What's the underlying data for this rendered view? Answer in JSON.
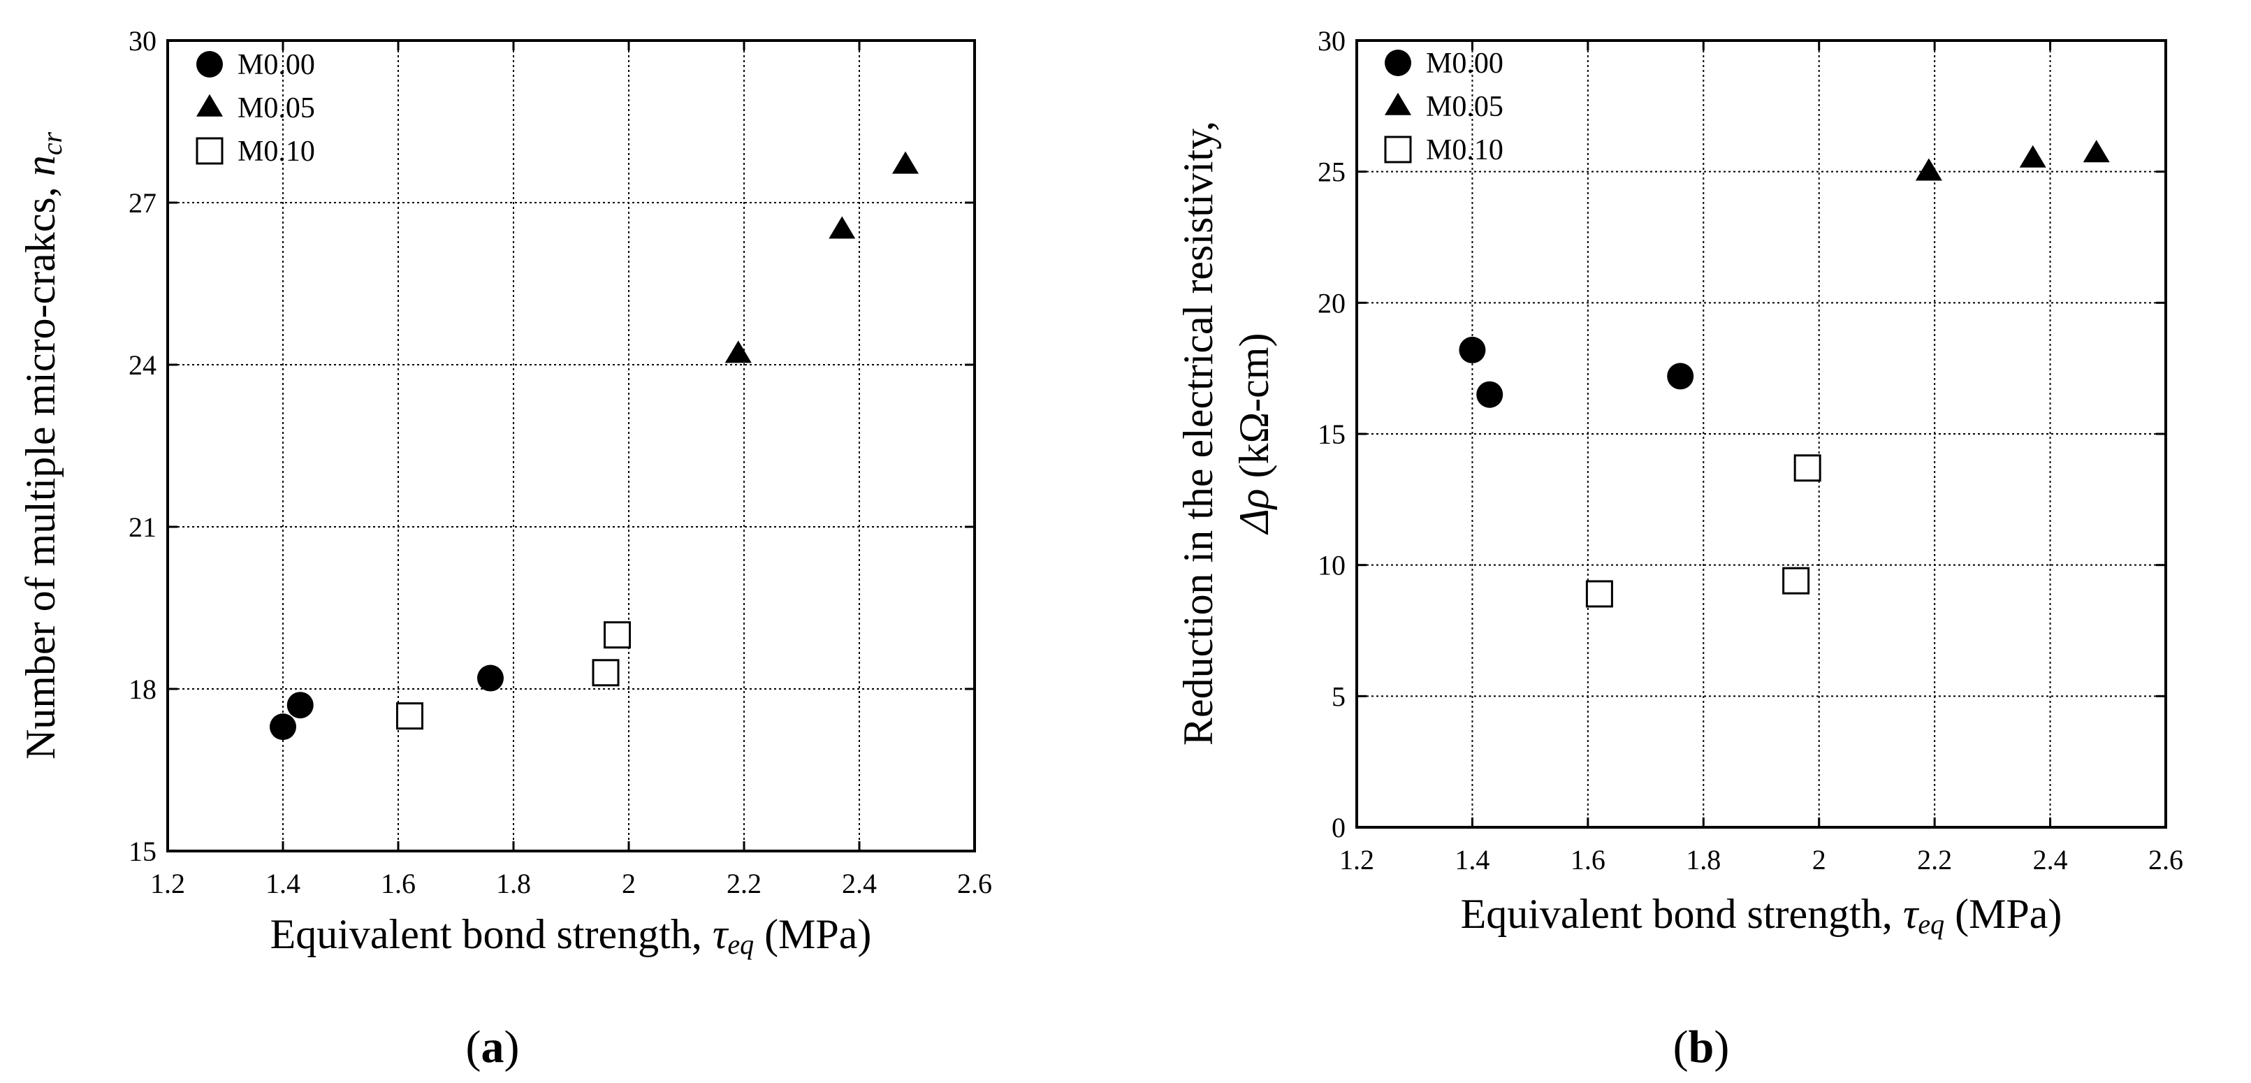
{
  "chart_data": [
    {
      "type": "scatter",
      "panel_label": "(a)",
      "panel_letter": "a",
      "xlabel": "Equivalent bond strength, ",
      "xlabel_symbol": "τ",
      "xlabel_sub": "eq",
      "xlabel_unit": " (MPa)",
      "ylabel": "Number of multiple micro-crakcs, ",
      "ylabel_symbol": "n",
      "ylabel_sub": "cr",
      "xlim": [
        1.2,
        2.6
      ],
      "ylim": [
        15,
        30
      ],
      "xticks": [
        "1.2",
        "1.4",
        "1.6",
        "1.8",
        "2",
        "2.2",
        "2.4",
        "2.6"
      ],
      "yticks": [
        "15",
        "18",
        "21",
        "24",
        "27",
        "30"
      ],
      "grid": true,
      "legend_position": "top-left",
      "series": [
        {
          "name": "M0.00",
          "marker": "circle",
          "points": [
            [
              1.4,
              17.3
            ],
            [
              1.43,
              17.7
            ],
            [
              1.76,
              18.2
            ]
          ]
        },
        {
          "name": "M0.05",
          "marker": "triangle",
          "points": [
            [
              2.19,
              24.2
            ],
            [
              2.37,
              26.5
            ],
            [
              2.48,
              27.7
            ]
          ]
        },
        {
          "name": "M0.10",
          "marker": "square",
          "points": [
            [
              1.62,
              17.5
            ],
            [
              1.96,
              18.3
            ],
            [
              1.98,
              19.0
            ]
          ]
        }
      ]
    },
    {
      "type": "scatter",
      "panel_label": "(b)",
      "panel_letter": "b",
      "xlabel": "Equivalent bond strength, ",
      "xlabel_symbol": "τ",
      "xlabel_sub": "eq",
      "xlabel_unit": " (MPa)",
      "ylabel_line1": "Reduction in the electrical resistivity,",
      "ylabel_symbol": "Δρ",
      "ylabel_unit": " (kΩ-cm)",
      "xlim": [
        1.2,
        2.6
      ],
      "ylim": [
        0,
        30
      ],
      "xticks": [
        "1.2",
        "1.4",
        "1.6",
        "1.8",
        "2",
        "2.2",
        "2.4",
        "2.6"
      ],
      "yticks": [
        "0",
        "5",
        "10",
        "15",
        "20",
        "25",
        "30"
      ],
      "grid": true,
      "legend_position": "top-left",
      "series": [
        {
          "name": "M0.00",
          "marker": "circle",
          "points": [
            [
              1.4,
              18.2
            ],
            [
              1.43,
              16.5
            ],
            [
              1.76,
              17.2
            ]
          ]
        },
        {
          "name": "M0.05",
          "marker": "triangle",
          "points": [
            [
              2.19,
              25.0
            ],
            [
              2.37,
              25.5
            ],
            [
              2.48,
              25.7
            ]
          ]
        },
        {
          "name": "M0.10",
          "marker": "square",
          "points": [
            [
              1.62,
              8.9
            ],
            [
              1.96,
              9.4
            ],
            [
              1.98,
              13.7
            ]
          ]
        }
      ]
    }
  ]
}
